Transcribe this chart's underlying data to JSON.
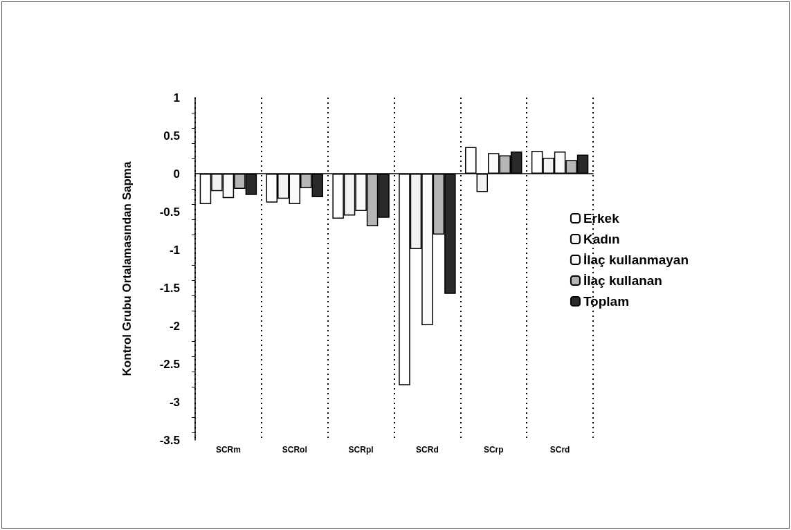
{
  "chart_data": {
    "type": "bar",
    "ylabel": "Kontrol Grubu Ortalamasından Sapma",
    "categories": [
      "SCRm",
      "SCRol",
      "SCRpl",
      "SCRd",
      "SCrp",
      "SCrd"
    ],
    "series": [
      {
        "name": "Erkek",
        "color": "#ffffff",
        "values": [
          -0.4,
          -0.38,
          -0.59,
          -2.78,
          0.35,
          0.3
        ]
      },
      {
        "name": "Kadın",
        "color": "#f2f2f2",
        "values": [
          -0.23,
          -0.33,
          -0.55,
          -0.99,
          -0.24,
          0.21
        ]
      },
      {
        "name": "İlaç kullanmayan",
        "color": "#fafafa",
        "values": [
          -0.32,
          -0.4,
          -0.49,
          -1.99,
          0.27,
          0.29
        ]
      },
      {
        "name": "İlaç kullanan",
        "color": "#b5b5b5",
        "values": [
          -0.2,
          -0.19,
          -0.69,
          -0.8,
          0.24,
          0.18
        ]
      },
      {
        "name": "Toplam",
        "color": "#2a2a2a",
        "values": [
          -0.28,
          -0.31,
          -0.58,
          -1.58,
          0.29,
          0.25
        ]
      }
    ],
    "ylim": [
      -3.5,
      1
    ],
    "yticks": [
      -3.5,
      -3,
      -2.5,
      -2,
      -1.5,
      -1,
      -0.5,
      0,
      0.5,
      1
    ],
    "grid": "x",
    "legend": "right"
  }
}
